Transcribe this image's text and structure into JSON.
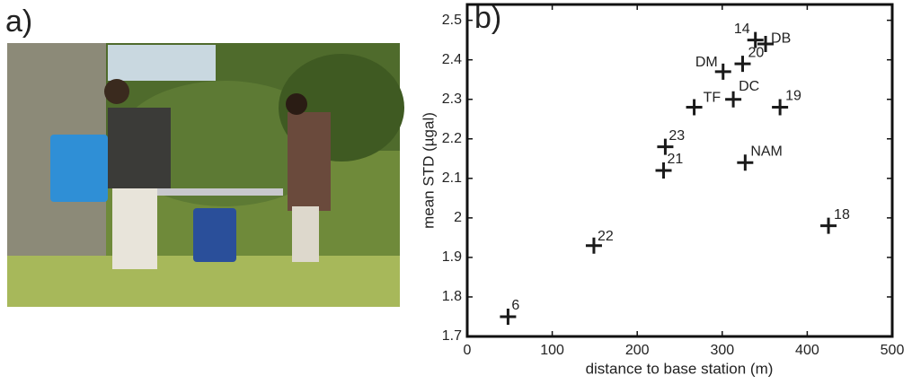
{
  "panel_a": {
    "label": "a)"
  },
  "chart_data": {
    "type": "scatter",
    "panel_label": "b)",
    "xlabel": "distance to base station (m)",
    "ylabel": "mean STD (µgal)",
    "labels": [
      "6",
      "22",
      "21",
      "23",
      "TF",
      "DC",
      "19",
      "NAM",
      "18",
      "DM",
      "20",
      "14",
      "DB"
    ],
    "x": [
      48,
      149,
      231,
      233,
      267,
      313,
      368,
      327,
      425,
      301,
      324,
      339,
      351
    ],
    "values": [
      1.75,
      1.93,
      2.12,
      2.18,
      2.28,
      2.3,
      2.28,
      2.14,
      1.98,
      2.37,
      2.39,
      2.45,
      2.44
    ],
    "xlim": [
      0,
      500
    ],
    "ylim": [
      1.7,
      2.54
    ],
    "xticks": [
      0,
      100,
      200,
      300,
      400,
      500
    ],
    "yticks": [
      1.7,
      1.8,
      1.9,
      2,
      2.1,
      2.2,
      2.3,
      2.4,
      2.5
    ],
    "color": "#1a1a1a",
    "marker": "plus"
  }
}
